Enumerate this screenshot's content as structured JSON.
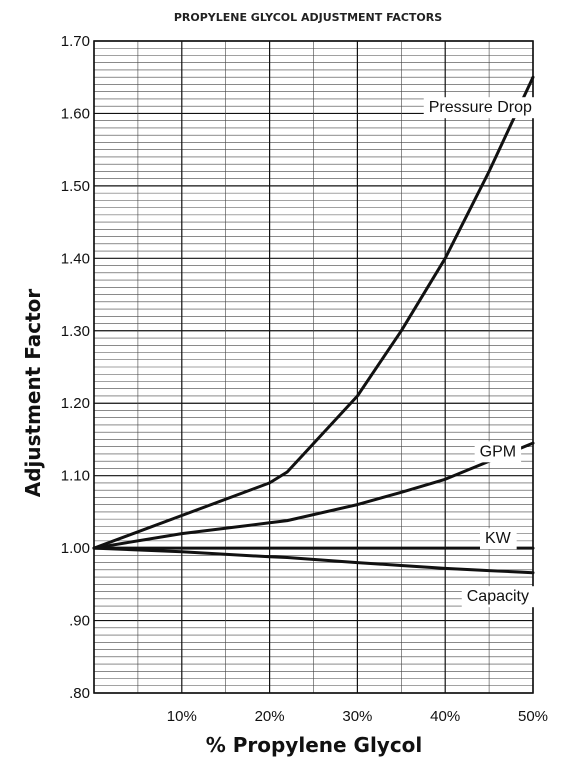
{
  "chart_data": {
    "type": "line",
    "title": "PROPYLENE GLYCOL ADJUSTMENT FACTORS",
    "xlabel": "% Propylene Glycol",
    "ylabel": "Adjustment Factor",
    "xlim": [
      0,
      50
    ],
    "ylim": [
      0.8,
      1.7
    ],
    "x_ticks": [
      {
        "value": 10,
        "label": "10%"
      },
      {
        "value": 20,
        "label": "20%"
      },
      {
        "value": 30,
        "label": "30%"
      },
      {
        "value": 40,
        "label": "40%"
      },
      {
        "value": 50,
        "label": "50%"
      }
    ],
    "y_ticks": [
      {
        "value": 0.8,
        "label": ".80"
      },
      {
        "value": 0.9,
        "label": ".90"
      },
      {
        "value": 1.0,
        "label": "1.00"
      },
      {
        "value": 1.1,
        "label": "1.10"
      },
      {
        "value": 1.2,
        "label": "1.20"
      },
      {
        "value": 1.3,
        "label": "1.30"
      },
      {
        "value": 1.4,
        "label": "1.40"
      },
      {
        "value": 1.5,
        "label": "1.50"
      },
      {
        "value": 1.6,
        "label": "1.60"
      },
      {
        "value": 1.7,
        "label": "1.70"
      }
    ],
    "grid": true,
    "x": [
      0,
      10,
      20,
      22,
      30,
      35,
      40,
      45,
      50
    ],
    "series": [
      {
        "name": "Pressure Drop",
        "values": [
          1.0,
          1.045,
          1.09,
          1.105,
          1.21,
          1.3,
          1.4,
          1.52,
          1.65
        ]
      },
      {
        "name": "GPM",
        "values": [
          1.0,
          1.02,
          1.035,
          1.038,
          1.06,
          1.077,
          1.095,
          1.12,
          1.145
        ]
      },
      {
        "name": "KW",
        "values": [
          1.0,
          1.0,
          1.0,
          1.0,
          1.0,
          1.0,
          1.0,
          1.0,
          1.0
        ]
      },
      {
        "name": "Capacity",
        "values": [
          1.0,
          0.995,
          0.988,
          0.987,
          0.98,
          0.976,
          0.972,
          0.969,
          0.966
        ]
      }
    ]
  }
}
